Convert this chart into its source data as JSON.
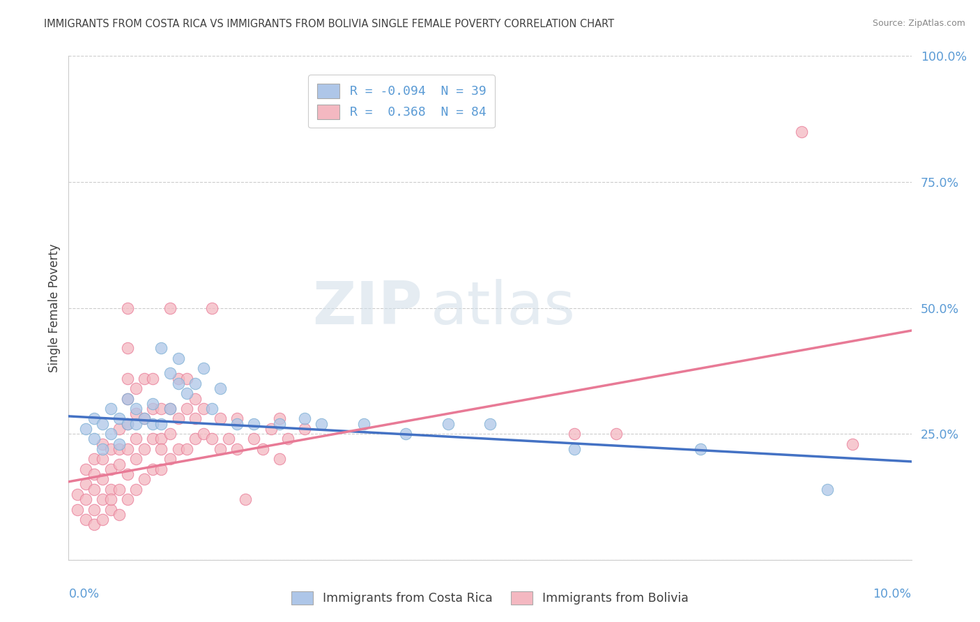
{
  "title": "IMMIGRANTS FROM COSTA RICA VS IMMIGRANTS FROM BOLIVIA SINGLE FEMALE POVERTY CORRELATION CHART",
  "source": "Source: ZipAtlas.com",
  "ylabel": "Single Female Poverty",
  "legend_entries": [
    {
      "label": "R = -0.094  N = 39",
      "color": "#aec6e8"
    },
    {
      "label": "R =  0.368  N = 84",
      "color": "#f4b8c1"
    }
  ],
  "legend_label_bottom": [
    "Immigrants from Costa Rica",
    "Immigrants from Bolivia"
  ],
  "watermark_part1": "ZIP",
  "watermark_part2": "atlas",
  "xlim": [
    0.0,
    0.1
  ],
  "ylim": [
    0.0,
    1.0
  ],
  "yticks": [
    0.0,
    0.25,
    0.5,
    0.75,
    1.0
  ],
  "ytick_labels": [
    "",
    "25.0%",
    "50.0%",
    "75.0%",
    "100.0%"
  ],
  "background_color": "#ffffff",
  "grid_color": "#cccccc",
  "axis_color": "#cccccc",
  "title_color": "#404040",
  "source_color": "#888888",
  "label_color": "#5b9bd5",
  "costa_rica_color": "#aec6e8",
  "bolivia_color": "#f4b8c1",
  "costa_rica_edge_color": "#7bafd4",
  "bolivia_edge_color": "#e87a96",
  "costa_rica_line_color": "#4472c4",
  "bolivia_line_color": "#e87a96",
  "costa_rica_scatter": [
    [
      0.002,
      0.26
    ],
    [
      0.003,
      0.24
    ],
    [
      0.003,
      0.28
    ],
    [
      0.004,
      0.22
    ],
    [
      0.004,
      0.27
    ],
    [
      0.005,
      0.25
    ],
    [
      0.005,
      0.3
    ],
    [
      0.006,
      0.28
    ],
    [
      0.006,
      0.23
    ],
    [
      0.007,
      0.27
    ],
    [
      0.007,
      0.32
    ],
    [
      0.008,
      0.27
    ],
    [
      0.008,
      0.3
    ],
    [
      0.009,
      0.28
    ],
    [
      0.01,
      0.27
    ],
    [
      0.01,
      0.31
    ],
    [
      0.011,
      0.27
    ],
    [
      0.011,
      0.42
    ],
    [
      0.012,
      0.3
    ],
    [
      0.012,
      0.37
    ],
    [
      0.013,
      0.35
    ],
    [
      0.013,
      0.4
    ],
    [
      0.014,
      0.33
    ],
    [
      0.015,
      0.35
    ],
    [
      0.016,
      0.38
    ],
    [
      0.017,
      0.3
    ],
    [
      0.018,
      0.34
    ],
    [
      0.02,
      0.27
    ],
    [
      0.022,
      0.27
    ],
    [
      0.025,
      0.27
    ],
    [
      0.028,
      0.28
    ],
    [
      0.03,
      0.27
    ],
    [
      0.035,
      0.27
    ],
    [
      0.04,
      0.25
    ],
    [
      0.045,
      0.27
    ],
    [
      0.05,
      0.27
    ],
    [
      0.06,
      0.22
    ],
    [
      0.075,
      0.22
    ],
    [
      0.09,
      0.14
    ]
  ],
  "bolivia_scatter": [
    [
      0.001,
      0.1
    ],
    [
      0.001,
      0.13
    ],
    [
      0.002,
      0.08
    ],
    [
      0.002,
      0.12
    ],
    [
      0.002,
      0.15
    ],
    [
      0.002,
      0.18
    ],
    [
      0.003,
      0.07
    ],
    [
      0.003,
      0.1
    ],
    [
      0.003,
      0.14
    ],
    [
      0.003,
      0.17
    ],
    [
      0.003,
      0.2
    ],
    [
      0.004,
      0.08
    ],
    [
      0.004,
      0.12
    ],
    [
      0.004,
      0.16
    ],
    [
      0.004,
      0.2
    ],
    [
      0.004,
      0.23
    ],
    [
      0.005,
      0.1
    ],
    [
      0.005,
      0.14
    ],
    [
      0.005,
      0.18
    ],
    [
      0.005,
      0.22
    ],
    [
      0.005,
      0.12
    ],
    [
      0.006,
      0.09
    ],
    [
      0.006,
      0.14
    ],
    [
      0.006,
      0.19
    ],
    [
      0.006,
      0.22
    ],
    [
      0.006,
      0.26
    ],
    [
      0.007,
      0.12
    ],
    [
      0.007,
      0.17
    ],
    [
      0.007,
      0.22
    ],
    [
      0.007,
      0.27
    ],
    [
      0.007,
      0.32
    ],
    [
      0.007,
      0.36
    ],
    [
      0.007,
      0.42
    ],
    [
      0.007,
      0.5
    ],
    [
      0.008,
      0.14
    ],
    [
      0.008,
      0.2
    ],
    [
      0.008,
      0.24
    ],
    [
      0.008,
      0.29
    ],
    [
      0.008,
      0.34
    ],
    [
      0.009,
      0.16
    ],
    [
      0.009,
      0.22
    ],
    [
      0.009,
      0.28
    ],
    [
      0.009,
      0.36
    ],
    [
      0.01,
      0.18
    ],
    [
      0.01,
      0.24
    ],
    [
      0.01,
      0.3
    ],
    [
      0.01,
      0.36
    ],
    [
      0.011,
      0.18
    ],
    [
      0.011,
      0.24
    ],
    [
      0.011,
      0.3
    ],
    [
      0.011,
      0.22
    ],
    [
      0.012,
      0.2
    ],
    [
      0.012,
      0.25
    ],
    [
      0.012,
      0.3
    ],
    [
      0.012,
      0.5
    ],
    [
      0.013,
      0.22
    ],
    [
      0.013,
      0.28
    ],
    [
      0.013,
      0.36
    ],
    [
      0.014,
      0.22
    ],
    [
      0.014,
      0.3
    ],
    [
      0.014,
      0.36
    ],
    [
      0.015,
      0.24
    ],
    [
      0.015,
      0.28
    ],
    [
      0.015,
      0.32
    ],
    [
      0.016,
      0.25
    ],
    [
      0.016,
      0.3
    ],
    [
      0.017,
      0.24
    ],
    [
      0.017,
      0.5
    ],
    [
      0.018,
      0.22
    ],
    [
      0.018,
      0.28
    ],
    [
      0.019,
      0.24
    ],
    [
      0.02,
      0.22
    ],
    [
      0.02,
      0.28
    ],
    [
      0.021,
      0.12
    ],
    [
      0.022,
      0.24
    ],
    [
      0.023,
      0.22
    ],
    [
      0.024,
      0.26
    ],
    [
      0.025,
      0.2
    ],
    [
      0.025,
      0.28
    ],
    [
      0.026,
      0.24
    ],
    [
      0.028,
      0.26
    ],
    [
      0.06,
      0.25
    ],
    [
      0.065,
      0.25
    ],
    [
      0.087,
      0.85
    ],
    [
      0.093,
      0.23
    ]
  ]
}
